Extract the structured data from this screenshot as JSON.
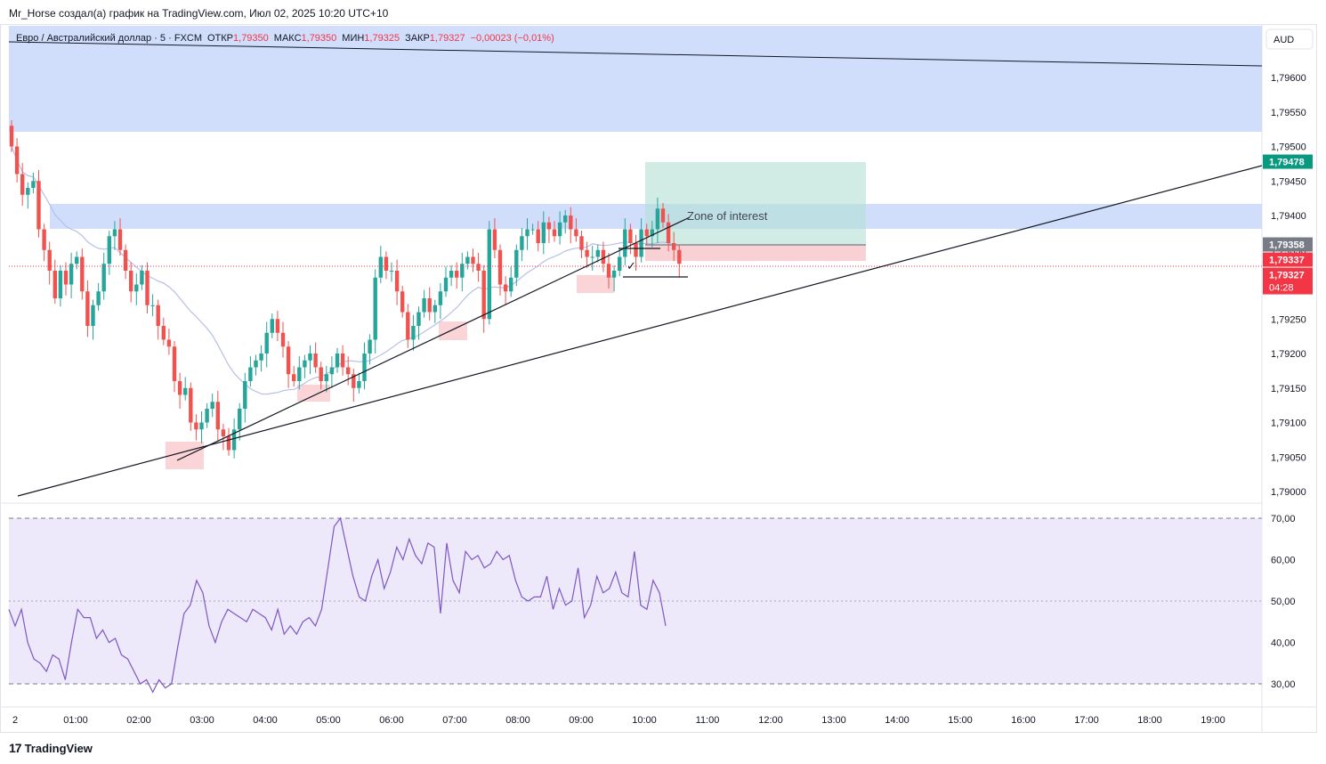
{
  "header": {
    "title": "Mr_Horse создал(а) график на TradingView.com, Июл 02, 2025 10:20 UTC+10"
  },
  "legend": {
    "symbol": "Евро / Австралийский доллар · 5 · FXCM",
    "open_label": "ОТКР",
    "open": "1,79350",
    "high_label": "МАКС",
    "high": "1,79350",
    "low_label": "МИН",
    "low": "1,79325",
    "close_label": "ЗАКР",
    "close": "1,79327",
    "change": "−0,00023 (−0,01%)"
  },
  "currency": "AUD",
  "annotation_text": "Zone of interest",
  "footer": {
    "brand": "TradingView"
  },
  "colors": {
    "up": "#26a69a",
    "down": "#ef5350",
    "zone": "#c8d8fb",
    "rsi_line": "#7e57c2",
    "rsi_band": "#ede8fa",
    "ma": "#b7bfe8"
  },
  "chart_data": {
    "type": "candlestick",
    "price_axis": {
      "range": [
        1.7899,
        1.7969
      ],
      "ticks": [
        "1,79600",
        "1,79550",
        "1,79500",
        "1,79450",
        "1,79400",
        "1,79350",
        "1,79300",
        "1,79250",
        "1,79200",
        "1,79150",
        "1,79100",
        "1,79050",
        "1,79000"
      ],
      "tick_values": [
        1.796,
        1.7955,
        1.795,
        1.7945,
        1.794,
        1.7935,
        1.793,
        1.7925,
        1.792,
        1.7915,
        1.791,
        1.7905,
        1.79
      ]
    },
    "price_labels": [
      {
        "value": 1.79478,
        "text": "1,79478",
        "color": "#089981"
      },
      {
        "value": 1.79358,
        "text": "1,79358",
        "color": "#787b86"
      },
      {
        "value": 1.79337,
        "text": "1,79337",
        "color": "#f23645"
      },
      {
        "value": 1.79327,
        "text": "1,79327",
        "color": "#f23645",
        "sub": "04:28"
      }
    ],
    "time_axis": {
      "labels": [
        "2",
        "01:00",
        "02:00",
        "03:00",
        "04:00",
        "05:00",
        "06:00",
        "07:00",
        "08:00",
        "09:00",
        "10:00",
        "11:00",
        "12:00",
        "13:00",
        "14:00",
        "15:00",
        "16:00",
        "17:00",
        "18:00",
        "19:00"
      ],
      "hours": [
        0,
        1,
        2,
        3,
        4,
        5,
        6,
        7,
        8,
        9,
        10,
        11,
        12,
        13,
        14,
        15,
        16,
        17,
        18,
        19
      ]
    },
    "series": [
      {
        "name": "",
        "ohlc_close": [
          1.795,
          1.7946,
          1.7943,
          1.7944,
          1.7945,
          1.7938,
          1.7935,
          1.7932,
          1.7928,
          1.7932,
          1.793,
          1.7933,
          1.7934,
          1.7929,
          1.7924,
          1.7927,
          1.7929,
          1.7933,
          1.7937,
          1.7938,
          1.7935,
          1.7932,
          1.7929,
          1.793,
          1.7932,
          1.7927,
          1.7927,
          1.7924,
          1.7922,
          1.7921,
          1.7916,
          1.7914,
          1.7915,
          1.791,
          1.7909,
          1.791,
          1.7912,
          1.7913,
          1.7909,
          1.7908,
          1.7906,
          1.7909,
          1.7912,
          1.7916,
          1.7918,
          1.7919,
          1.792,
          1.7923,
          1.7925,
          1.7923,
          1.7921,
          1.7917,
          1.7916,
          1.7918,
          1.7919,
          1.792,
          1.7918,
          1.7916,
          1.7917,
          1.7918,
          1.792,
          1.7918,
          1.7917,
          1.7915,
          1.7916,
          1.792,
          1.7922,
          1.7931,
          1.7934,
          1.7932,
          1.7932,
          1.7929,
          1.7926,
          1.7922,
          1.7924,
          1.7926,
          1.7928,
          1.7926,
          1.7927,
          1.7929,
          1.7931,
          1.7932,
          1.7931,
          1.7933,
          1.7934,
          1.7933,
          1.7932,
          1.7925,
          1.7938,
          1.7935,
          1.793,
          1.7929,
          1.7931,
          1.7935,
          1.7937,
          1.7938,
          1.7938,
          1.7936,
          1.7939,
          1.7938,
          1.7937,
          1.7939,
          1.794,
          1.7938,
          1.7937,
          1.7935,
          1.7934,
          1.7934,
          1.7935,
          1.7933,
          1.7931,
          1.7932,
          1.7934,
          1.7938,
          1.7936,
          1.7934,
          1.7938,
          1.7937,
          1.7938,
          1.7941,
          1.7939,
          1.7936,
          1.7935,
          1.7933
        ]
      },
      {
        "name": "",
        "rsi": [
          48,
          44,
          48,
          40,
          36,
          35,
          33,
          37,
          36,
          31,
          40,
          48,
          46,
          46,
          41,
          43,
          40,
          41,
          37,
          36,
          33,
          30,
          31,
          28,
          31,
          29,
          30,
          39,
          47,
          49,
          55,
          52,
          44,
          40,
          45,
          48,
          47,
          46,
          45,
          48,
          47,
          46,
          43,
          48,
          42,
          44,
          42,
          45,
          46,
          44,
          48,
          58,
          68,
          70,
          63,
          56,
          51,
          50,
          56,
          60,
          53,
          57,
          63,
          60,
          65,
          61,
          59,
          64,
          63,
          47,
          64,
          55,
          52,
          62,
          60,
          61,
          58,
          59,
          62,
          60,
          61,
          55,
          51,
          50,
          51,
          51,
          56,
          48,
          53,
          49,
          50,
          58,
          46,
          49,
          56,
          52,
          53,
          57,
          52,
          51,
          62,
          49,
          48,
          55,
          52,
          44
        ]
      }
    ],
    "rsi_axis": {
      "range": [
        25,
        75
      ],
      "ticks": [
        "70,00",
        "60,00",
        "50,00",
        "40,00",
        "30,00"
      ],
      "tick_values": [
        70,
        60,
        50,
        40,
        30
      ]
    }
  }
}
